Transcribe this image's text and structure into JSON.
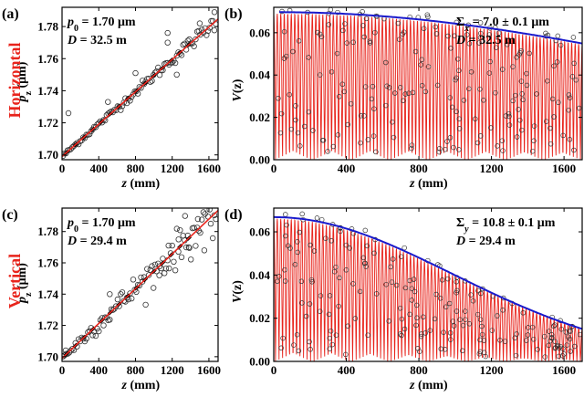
{
  "chart_data": [
    {
      "panel": "(a)",
      "row_label": "Horizontal",
      "type": "scatter",
      "xlabel_parts": [
        "z",
        " (mm)"
      ],
      "ylabel_parts": [
        "p",
        "z",
        " (μm)"
      ],
      "xlim": [
        0,
        1700
      ],
      "ylim": [
        1.697,
        1.792
      ],
      "xticks": [
        "0",
        "400",
        "800",
        "1200",
        "1600"
      ],
      "xtick_values": [
        0,
        400,
        800,
        1200,
        1600
      ],
      "yticks": [
        "1.70",
        "1.72",
        "1.74",
        "1.76",
        "1.78"
      ],
      "ytick_values": [
        1.7,
        1.72,
        1.74,
        1.76,
        1.78
      ],
      "annotations": [
        {
          "parts": [
            "p",
            "0",
            " = 1.70 μm"
          ]
        },
        {
          "parts": [
            "D",
            " = 32.5 m"
          ]
        }
      ],
      "fit_line": {
        "color": "#e8241c",
        "points": [
          [
            0,
            1.699
          ],
          [
            1700,
            1.7847
          ]
        ]
      },
      "outliers": [
        [
          70,
          1.726
        ],
        [
          1150,
          1.776
        ],
        [
          1150,
          1.77
        ],
        [
          1250,
          1.75
        ],
        [
          1500,
          1.782
        ],
        [
          800,
          1.751
        ],
        [
          500,
          1.733
        ],
        [
          1660,
          1.789
        ]
      ],
      "scatter_spread": 0.002
    },
    {
      "panel": "(b)",
      "type": "line",
      "xlabel_parts": [
        "z",
        " (mm)"
      ],
      "ylabel_parts": [
        "V",
        "(z)"
      ],
      "xlim": [
        0,
        1700
      ],
      "ylim": [
        0,
        0.072
      ],
      "xticks": [
        "0",
        "400",
        "800",
        "1200",
        "1600"
      ],
      "xtick_values": [
        0,
        400,
        800,
        1200,
        1600
      ],
      "yticks": [
        "0.00",
        "0.02",
        "0.04",
        "0.06"
      ],
      "ytick_values": [
        0,
        0.02,
        0.04,
        0.06
      ],
      "annotations": [
        {
          "parts": [
            "Σ",
            "x",
            " = 7.0 ± 0.1 μm"
          ]
        },
        {
          "parts": [
            "D",
            " = 32.5 m"
          ]
        }
      ],
      "envelope": {
        "color": "#1a1acc",
        "amplitude": 0.0697,
        "sigma_mm": 2420,
        "x_start": 30
      },
      "oscillation": {
        "color": "#e8241c",
        "count": 88
      }
    },
    {
      "panel": "(c)",
      "row_label": "Vertical",
      "type": "scatter",
      "xlabel_parts": [
        "z",
        " (mm)"
      ],
      "ylabel_parts": [
        "p",
        "z",
        " (μm)"
      ],
      "xlim": [
        0,
        1700
      ],
      "ylim": [
        1.697,
        1.795
      ],
      "xticks": [
        "0",
        "400",
        "800",
        "1200",
        "1600"
      ],
      "xtick_values": [
        0,
        400,
        800,
        1200,
        1600
      ],
      "yticks": [
        "1.70",
        "1.72",
        "1.74",
        "1.76",
        "1.78"
      ],
      "ytick_values": [
        1.7,
        1.72,
        1.74,
        1.76,
        1.78
      ],
      "annotations": [
        {
          "parts": [
            "p",
            "0",
            " = 1.70 μm"
          ]
        },
        {
          "parts": [
            "D",
            " = 29.4 m"
          ]
        }
      ],
      "fit_line": {
        "color": "#e8241c",
        "points": [
          [
            0,
            1.699
          ],
          [
            1700,
            1.7935
          ]
        ]
      },
      "outliers": [
        [
          40,
          1.704
        ],
        [
          520,
          1.74
        ],
        [
          1060,
          1.752
        ],
        [
          1160,
          1.771
        ],
        [
          1270,
          1.775
        ],
        [
          1340,
          1.79
        ],
        [
          1380,
          1.77
        ],
        [
          1480,
          1.788
        ],
        [
          1550,
          1.768
        ],
        [
          1620,
          1.785
        ]
      ],
      "scatter_spread": 0.006
    },
    {
      "panel": "(d)",
      "type": "line",
      "xlabel_parts": [
        "z",
        " (mm)"
      ],
      "ylabel_parts": [
        "V",
        "(z)"
      ],
      "xlim": [
        0,
        1700
      ],
      "ylim": [
        0,
        0.071
      ],
      "xticks": [
        "0",
        "400",
        "800",
        "1200",
        "1600"
      ],
      "xtick_values": [
        0,
        400,
        800,
        1200,
        1600
      ],
      "yticks": [
        "0.00",
        "0.02",
        "0.04",
        "0.06"
      ],
      "ytick_values": [
        0,
        0.02,
        0.04,
        0.06
      ],
      "annotations": [
        {
          "parts": [
            "Σ",
            "y",
            " = 10.8 ± 0.1 μm"
          ]
        },
        {
          "parts": [
            "D",
            " = 29.4 m"
          ]
        }
      ],
      "envelope": {
        "color": "#1a1acc",
        "amplitude": 0.0668,
        "sigma_mm": 985,
        "x_start": 0
      },
      "oscillation": {
        "color": "#e8241c",
        "count": 88
      }
    }
  ]
}
